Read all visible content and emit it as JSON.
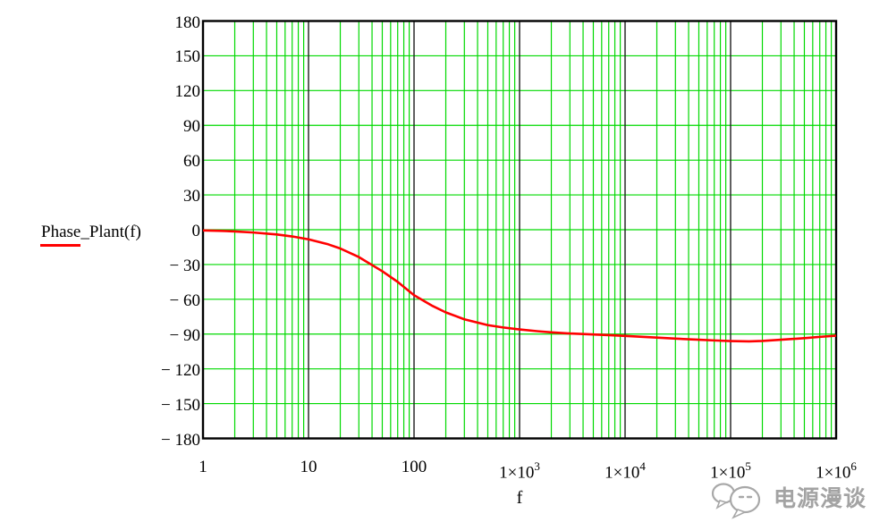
{
  "legend": {
    "label": "Phase_Plant(f)",
    "sample_color": "#ff0000"
  },
  "watermark": {
    "text": "电源漫谈",
    "icon": "chat-bubbles-icon",
    "color": "#949494"
  },
  "colors": {
    "background": "#ffffff",
    "grid_minor": "#00d900",
    "grid_major_horizontal": "#00d900",
    "grid_decade_vertical": "#1c1c1c",
    "frame": "#000000",
    "trace": "#ff0000",
    "text": "#000000"
  },
  "chart_data": {
    "type": "line",
    "title": "",
    "xlabel": "f",
    "ylabel": "",
    "x_scale": "log",
    "xlim": [
      1,
      1000000
    ],
    "ylim": [
      -180,
      180
    ],
    "grid": true,
    "legend_position": "left-outside",
    "y_ticks": [
      180,
      150,
      120,
      90,
      60,
      30,
      0,
      -30,
      -60,
      -90,
      -120,
      -150,
      -180
    ],
    "y_tick_labels": [
      "180",
      "150",
      "120",
      "90",
      "60",
      "30",
      "0",
      "− 30",
      "− 60",
      "− 90",
      "− 120",
      "− 150",
      "− 180"
    ],
    "x_tick_values": [
      1,
      10,
      100,
      1000,
      10000,
      100000,
      1000000
    ],
    "x_tick_labels": [
      {
        "base": "1",
        "exp": ""
      },
      {
        "base": "10",
        "exp": ""
      },
      {
        "base": "100",
        "exp": ""
      },
      {
        "base": "1×10",
        "exp": "3"
      },
      {
        "base": "1×10",
        "exp": "4"
      },
      {
        "base": "1×10",
        "exp": "5"
      },
      {
        "base": "1×10",
        "exp": "6"
      }
    ],
    "series": [
      {
        "name": "Phase_Plant(f)",
        "color": "#ff0000",
        "x": [
          1,
          1.5,
          2,
          3,
          5,
          7,
          10,
          15,
          20,
          30,
          50,
          70,
          100,
          150,
          200,
          300,
          500,
          700,
          1000,
          1500,
          2000,
          3000,
          5000,
          7000,
          10000,
          20000,
          30000,
          50000,
          70000,
          100000,
          150000,
          200000,
          300000,
          500000,
          700000,
          1000000
        ],
        "y": [
          -0.6,
          -1.0,
          -1.5,
          -2.4,
          -4.1,
          -5.8,
          -8.3,
          -12.3,
          -16.2,
          -23.6,
          -35.8,
          -45.0,
          -56.5,
          -65.8,
          -71.3,
          -77.3,
          -82.3,
          -84.3,
          -86.0,
          -87.6,
          -88.5,
          -89.5,
          -90.3,
          -90.9,
          -91.6,
          -93.0,
          -93.9,
          -94.9,
          -95.5,
          -96.0,
          -96.3,
          -95.9,
          -94.9,
          -93.5,
          -92.4,
          -91.4
        ]
      }
    ]
  }
}
